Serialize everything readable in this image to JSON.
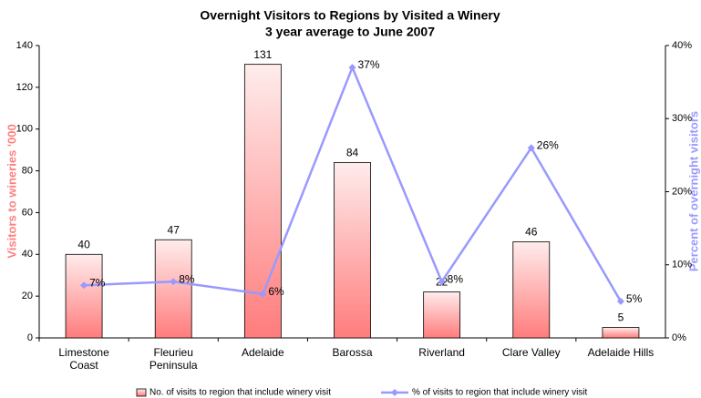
{
  "chart_data": {
    "type": "bar-line",
    "title": "Overnight Visitors to Regions by Visited a Winery",
    "subtitle": "3 year average to June 2007",
    "y_label": "Visitors to wineries '000",
    "y2_label": "Percent of overnight visitors",
    "categories": [
      "Limestone\nCoast",
      "Fleurieu\nPeninsula",
      "Adelaide",
      "Barossa",
      "Riverland",
      "Clare Valley",
      "Adelaide Hills"
    ],
    "series": [
      {
        "name": "No. of visits to region that include winery visit",
        "type": "bar",
        "color": "#ff7c7c",
        "values": [
          40,
          47,
          131,
          84,
          22,
          46,
          5
        ]
      },
      {
        "name": "% of visits to region that include  winery visit",
        "type": "line",
        "axis": "y2",
        "color": "#9999ff",
        "values": [
          7.2,
          7.7,
          6,
          37,
          7.7,
          26,
          5
        ],
        "value_labels": [
          "7%",
          "8%",
          "6%",
          "37%",
          "8%",
          "26%",
          "5%"
        ]
      }
    ],
    "ylim": [
      0,
      140
    ],
    "yticks": [
      0,
      20,
      40,
      60,
      80,
      100,
      120,
      140
    ],
    "y2lim": [
      0,
      40
    ],
    "y2ticks": [
      {
        "value": 0,
        "label": "0%"
      },
      {
        "value": 10,
        "label": "10%"
      },
      {
        "value": 20,
        "label": "20%"
      },
      {
        "value": 30,
        "label": "30%"
      },
      {
        "value": 40,
        "label": "40%"
      }
    ],
    "legend": "bottom"
  }
}
